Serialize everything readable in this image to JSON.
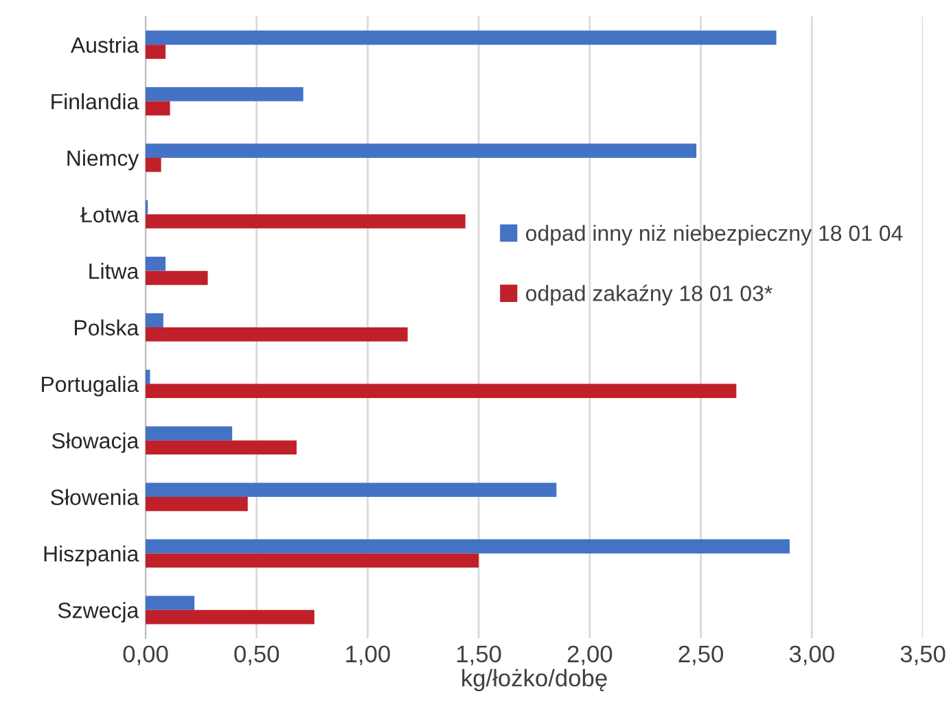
{
  "chart_data": {
    "type": "bar",
    "orientation": "horizontal",
    "xlabel": "kg/łożko/dobę",
    "categories": [
      "Austria",
      "Finlandia",
      "Niemcy",
      "Łotwa",
      "Litwa",
      "Polska",
      "Portugalia",
      "Słowacja",
      "Słowenia",
      "Hiszpania",
      "Szwecja"
    ],
    "series": [
      {
        "name": "odpad inny niż niebezpieczny 18 01 04",
        "color": "#4472c4",
        "values": [
          2.84,
          0.71,
          2.48,
          0.01,
          0.09,
          0.08,
          0.02,
          0.39,
          1.85,
          2.9,
          0.22
        ]
      },
      {
        "name": "odpad zakaźny 18 01 03*",
        "color": "#c0202a",
        "values": [
          0.09,
          0.11,
          0.07,
          1.44,
          0.28,
          1.18,
          2.66,
          0.68,
          0.46,
          1.5,
          0.76
        ]
      }
    ],
    "xlim": [
      0,
      3.5
    ],
    "xticks": [
      {
        "value": 0,
        "label": "0,00"
      },
      {
        "value": 0.5,
        "label": "0,50"
      },
      {
        "value": 1,
        "label": "1,00"
      },
      {
        "value": 1.5,
        "label": "1,50"
      },
      {
        "value": 2,
        "label": "2,00"
      },
      {
        "value": 2.5,
        "label": "2,50"
      },
      {
        "value": 3,
        "label": "3,00"
      },
      {
        "value": 3.5,
        "label": "3,50"
      }
    ],
    "grid": "x",
    "legend": "center right"
  }
}
